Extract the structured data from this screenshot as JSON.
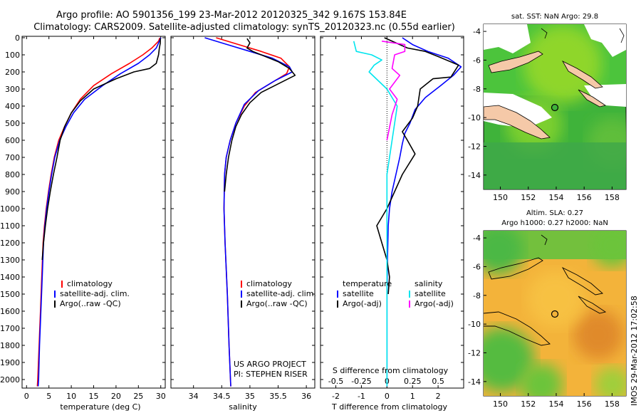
{
  "header": {
    "line1": "Argo profile: AO 5901356_199 23-Mar-2012 20120325_342 9.167S 153.84E",
    "line2": "Climatology: CARS2009. Satellite-adjusted climatology: synTS_20120323.nc (0.55d earlier)"
  },
  "stamp": "IMOS 29-Mar-2012 17:02:58",
  "credits": {
    "project": "US ARGO PROJECT",
    "pi": "PI: STEPHEN RISER"
  },
  "colors": {
    "climatology": "#ff0000",
    "satellite": "#0000ff",
    "argo": "#000000",
    "sal_satellite": "#00e5ee",
    "sal_argo": "#ff00ff",
    "land": "#f5c9a8"
  },
  "chart_data": [
    {
      "type": "line",
      "xlabel": "temperature (deg C)",
      "ylim": [
        2050,
        0
      ],
      "xlim": [
        -1,
        31
      ],
      "xticks": [
        0,
        5,
        10,
        15,
        20,
        25,
        30
      ],
      "yticks": [
        0,
        100,
        200,
        300,
        400,
        500,
        600,
        700,
        800,
        900,
        1000,
        1100,
        1200,
        1300,
        1400,
        1500,
        1600,
        1700,
        1800,
        1900,
        2000
      ],
      "legend": [
        "climatology",
        "satellite-adj. clim.",
        "Argo(..raw -QC)"
      ],
      "series": [
        {
          "name": "climatology",
          "points": [
            [
              29.8,
              0
            ],
            [
              29.5,
              20
            ],
            [
              28,
              60
            ],
            [
              26,
              100
            ],
            [
              23,
              150
            ],
            [
              19,
              210
            ],
            [
              15,
              280
            ],
            [
              12,
              360
            ],
            [
              10,
              440
            ],
            [
              8.5,
              520
            ],
            [
              7.2,
              600
            ],
            [
              6.2,
              700
            ],
            [
              5.5,
              800
            ],
            [
              4.9,
              900
            ],
            [
              4.4,
              1000
            ],
            [
              4,
              1100
            ],
            [
              3.7,
              1200
            ],
            [
              3.4,
              1400
            ],
            [
              3.1,
              1600
            ],
            [
              2.8,
              1800
            ],
            [
              2.5,
              2000
            ],
            [
              2.4,
              2040
            ]
          ]
        },
        {
          "name": "satellite-adj. clim.",
          "points": [
            [
              30,
              0
            ],
            [
              29.7,
              20
            ],
            [
              29,
              60
            ],
            [
              27.5,
              100
            ],
            [
              25,
              150
            ],
            [
              21,
              210
            ],
            [
              17,
              280
            ],
            [
              13,
              360
            ],
            [
              10.5,
              440
            ],
            [
              8.8,
              520
            ],
            [
              7.4,
              600
            ],
            [
              6.3,
              700
            ],
            [
              5.6,
              800
            ],
            [
              5,
              900
            ],
            [
              4.5,
              1000
            ],
            [
              4.1,
              1100
            ],
            [
              3.8,
              1200
            ],
            [
              3.5,
              1400
            ],
            [
              3.2,
              1600
            ],
            [
              2.9,
              1800
            ],
            [
              2.7,
              2000
            ],
            [
              2.6,
              2040
            ]
          ]
        },
        {
          "name": "Argo(..raw -QC)",
          "points": [
            [
              29.9,
              5
            ],
            [
              29.9,
              30
            ],
            [
              29.7,
              60
            ],
            [
              29.5,
              100
            ],
            [
              29,
              150
            ],
            [
              27.5,
              180
            ],
            [
              24,
              200
            ],
            [
              20,
              240
            ],
            [
              15,
              300
            ],
            [
              12,
              370
            ],
            [
              10,
              440
            ],
            [
              8.5,
              520
            ],
            [
              7.5,
              600
            ],
            [
              6.8,
              700
            ],
            [
              6,
              800
            ],
            [
              5.3,
              900
            ],
            [
              4.7,
              1000
            ],
            [
              4.2,
              1100
            ],
            [
              3.8,
              1200
            ],
            [
              3.5,
              1300
            ]
          ]
        }
      ]
    },
    {
      "type": "line",
      "xlabel": "salinity",
      "ylim": [
        2050,
        0
      ],
      "xlim": [
        33.6,
        36.15
      ],
      "xticks": [
        34,
        34.5,
        35,
        35.5,
        36
      ],
      "legend": [
        "climatology",
        "satellite-adj. clim.",
        "Argo(..raw -QC)"
      ],
      "series": [
        {
          "name": "climatology",
          "points": [
            [
              34.4,
              0
            ],
            [
              34.8,
              40
            ],
            [
              35.2,
              80
            ],
            [
              35.55,
              120
            ],
            [
              35.7,
              170
            ],
            [
              35.65,
              210
            ],
            [
              35.4,
              260
            ],
            [
              35.1,
              320
            ],
            [
              34.9,
              400
            ],
            [
              34.75,
              500
            ],
            [
              34.65,
              600
            ],
            [
              34.58,
              700
            ],
            [
              34.55,
              800
            ],
            [
              34.54,
              1000
            ],
            [
              34.56,
              1200
            ],
            [
              34.6,
              1500
            ],
            [
              34.63,
              1800
            ],
            [
              34.66,
              2040
            ]
          ]
        },
        {
          "name": "satellite-adj. clim.",
          "points": [
            [
              34.2,
              0
            ],
            [
              34.6,
              40
            ],
            [
              35,
              80
            ],
            [
              35.4,
              120
            ],
            [
              35.7,
              170
            ],
            [
              35.75,
              200
            ],
            [
              35.45,
              250
            ],
            [
              35.15,
              310
            ],
            [
              34.9,
              390
            ],
            [
              34.75,
              500
            ],
            [
              34.65,
              600
            ],
            [
              34.58,
              700
            ],
            [
              34.55,
              800
            ],
            [
              34.54,
              1000
            ],
            [
              34.56,
              1200
            ],
            [
              34.6,
              1500
            ],
            [
              34.63,
              1800
            ],
            [
              34.66,
              2040
            ]
          ]
        },
        {
          "name": "Argo(..raw -QC)",
          "points": [
            [
              34.95,
              5
            ],
            [
              35,
              30
            ],
            [
              34.95,
              60
            ],
            [
              35.05,
              80
            ],
            [
              35.2,
              100
            ],
            [
              35.5,
              140
            ],
            [
              35.7,
              180
            ],
            [
              35.8,
              220
            ],
            [
              35.5,
              270
            ],
            [
              35.2,
              320
            ],
            [
              35,
              380
            ],
            [
              34.85,
              450
            ],
            [
              34.75,
              520
            ],
            [
              34.68,
              600
            ],
            [
              34.62,
              700
            ],
            [
              34.58,
              800
            ],
            [
              34.55,
              900
            ]
          ]
        }
      ]
    },
    {
      "type": "line",
      "xlabel": "T difference from climatology",
      "x2label": "S difference from climatology",
      "ylim": [
        2050,
        0
      ],
      "xlim": [
        -2.6,
        3
      ],
      "xticks": [
        "-2",
        "-1",
        "0",
        "1",
        "2"
      ],
      "x2ticks": [
        "-0.5",
        "-0.25",
        "0",
        "0.25",
        "0.5"
      ],
      "legend_left_title": "temperature",
      "legend_right_title": "salinity",
      "legend": [
        "satellite",
        "Argo(-adj)",
        "satellite",
        "Argo(-adj)"
      ],
      "series": [
        {
          "name": "satellite",
          "points": [
            [
              0.6,
              0
            ],
            [
              1,
              40
            ],
            [
              1.6,
              80
            ],
            [
              2.4,
              120
            ],
            [
              2.9,
              170
            ],
            [
              2.6,
              220
            ],
            [
              2.1,
              280
            ],
            [
              1.5,
              350
            ],
            [
              1.1,
              420
            ],
            [
              0.9,
              500
            ],
            [
              0.7,
              560
            ],
            [
              0.6,
              620
            ],
            [
              0.5,
              700
            ],
            [
              0.35,
              800
            ],
            [
              0.2,
              900
            ],
            [
              0.1,
              1000
            ],
            [
              0.05,
              1100
            ],
            [
              0.02,
              1300
            ],
            [
              0,
              1500
            ],
            [
              0,
              1800
            ],
            [
              0,
              2040
            ]
          ]
        },
        {
          "name": "Argo(-adj)",
          "points": [
            [
              -0.1,
              0
            ],
            [
              0.5,
              40
            ],
            [
              0.8,
              60
            ],
            [
              1.5,
              80
            ],
            [
              2,
              110
            ],
            [
              2.8,
              160
            ],
            [
              2.5,
              230
            ],
            [
              1.8,
              240
            ],
            [
              1.3,
              300
            ],
            [
              1.2,
              400
            ],
            [
              1,
              470
            ],
            [
              0.6,
              550
            ],
            [
              0.8,
              600
            ],
            [
              1.1,
              680
            ],
            [
              0.6,
              800
            ],
            [
              0.3,
              900
            ],
            [
              0,
              1000
            ],
            [
              -0.4,
              1100
            ],
            [
              -0.2,
              1200
            ],
            [
              0,
              1300
            ],
            [
              0.1,
              1400
            ],
            [
              0.05,
              1500
            ]
          ]
        },
        {
          "name": "satellite",
          "points": [
            [
              -1.3,
              20
            ],
            [
              -1.2,
              80
            ],
            [
              -0.6,
              100
            ],
            [
              -0.2,
              130
            ],
            [
              -0.5,
              160
            ],
            [
              -0.7,
              200
            ],
            [
              0,
              300
            ],
            [
              0.4,
              400
            ],
            [
              0.3,
              500
            ],
            [
              0.2,
              600
            ],
            [
              0.1,
              700
            ],
            [
              0,
              800
            ],
            [
              0,
              1000
            ],
            [
              0,
              1500
            ],
            [
              0,
              2040
            ]
          ]
        },
        {
          "name": "Argo(-adj)",
          "points": [
            [
              -0.2,
              20
            ],
            [
              0.7,
              40
            ],
            [
              0.7,
              80
            ],
            [
              0.3,
              100
            ],
            [
              0.2,
              180
            ],
            [
              0.5,
              220
            ],
            [
              0.1,
              300
            ],
            [
              0.4,
              360
            ],
            [
              0.2,
              450
            ],
            [
              0,
              600
            ]
          ]
        }
      ]
    },
    {
      "type": "heatmap",
      "title": "sat. SST: NaN Argo: 29.8",
      "xlim": [
        148.8,
        159
      ],
      "ylim": [
        -15,
        -3.5
      ],
      "xticks": [
        150,
        152,
        154,
        156,
        158
      ],
      "yticks": [
        -4,
        -6,
        -8,
        -10,
        -12,
        -14
      ]
    },
    {
      "type": "heatmap",
      "title": "Altim. SLA: 0.27",
      "subtitle": "Argo h1000: 0.27 h2000: NaN",
      "xlim": [
        148.8,
        159
      ],
      "ylim": [
        -15,
        -3.5
      ],
      "xticks": [
        150,
        152,
        154,
        156,
        158
      ],
      "yticks": [
        -4,
        -6,
        -8,
        -10,
        -12,
        -14
      ]
    }
  ]
}
